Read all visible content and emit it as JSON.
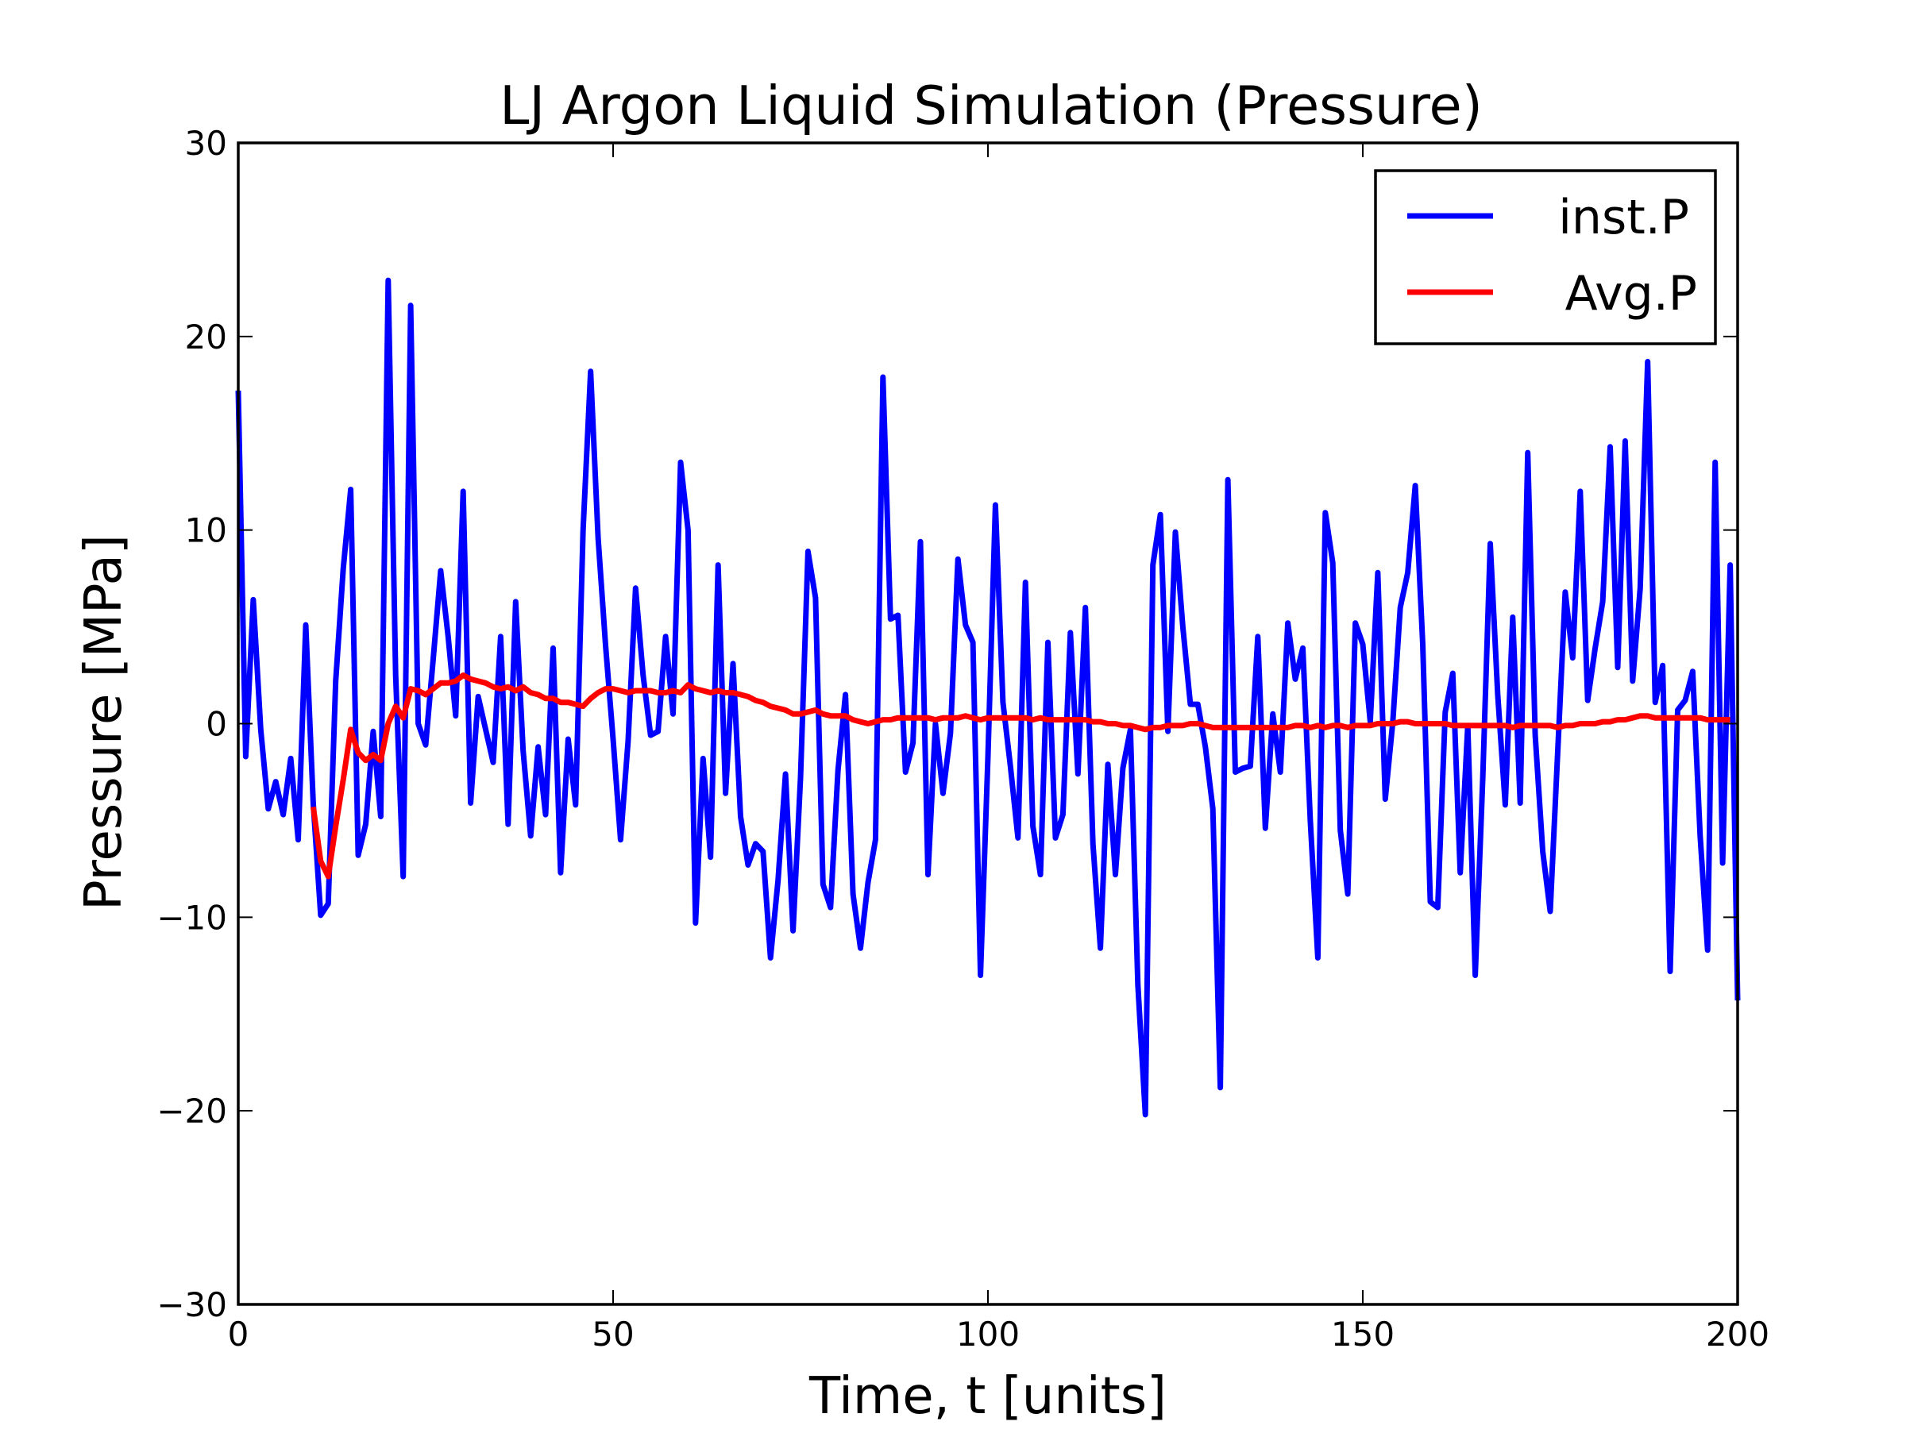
{
  "chart_data": {
    "type": "line",
    "title": "LJ Argon Liquid Simulation (Pressure)",
    "xlabel": "Time, t [units]",
    "ylabel": "Pressure [MPa]",
    "xlim": [
      0,
      200
    ],
    "ylim": [
      -30,
      30
    ],
    "x_ticks": [
      0,
      50,
      100,
      150,
      200
    ],
    "x_tick_labels": [
      "0",
      "50",
      "100",
      "150",
      "200"
    ],
    "y_ticks": [
      30,
      20,
      10,
      0,
      -10,
      -20,
      -30
    ],
    "y_tick_labels": [
      "30",
      "20",
      "10",
      "0",
      "−10",
      "−20",
      "−30"
    ],
    "grid": false,
    "legend_position": "top-right",
    "series": [
      {
        "name": "inst.P",
        "color": "#0000ff",
        "x_start": 0,
        "x_step": 1,
        "values": [
          17.2,
          -1.7,
          6.4,
          -0.3,
          -4.4,
          -3.0,
          -4.7,
          -1.8,
          -6.0,
          5.1,
          -4.1,
          -9.9,
          -9.3,
          2.2,
          8.0,
          12.1,
          -6.8,
          -5.2,
          -0.4,
          -4.8,
          22.9,
          2.5,
          -7.9,
          21.6,
          0.0,
          -1.1,
          3.3,
          7.9,
          4.5,
          0.4,
          12.0,
          -4.1,
          1.4,
          -0.3,
          -2.0,
          4.5,
          -5.2,
          6.3,
          -1.4,
          -5.8,
          -1.2,
          -4.7,
          3.9,
          -7.7,
          -0.8,
          -4.2,
          10.0,
          18.2,
          9.6,
          4.0,
          -0.8,
          -6.0,
          -0.9,
          7.0,
          2.5,
          -0.6,
          -0.4,
          4.5,
          0.5,
          13.5,
          10.0,
          -10.3,
          -1.8,
          -6.9,
          8.2,
          -3.6,
          3.1,
          -4.8,
          -7.3,
          -6.2,
          -6.6,
          -12.1,
          -8.1,
          -2.6,
          -10.7,
          -2.8,
          8.9,
          6.5,
          -8.3,
          -9.5,
          -2.4,
          1.5,
          -8.8,
          -11.6,
          -8.2,
          -6.0,
          17.9,
          5.4,
          5.6,
          -2.5,
          -1.0,
          9.4,
          -7.8,
          0.0,
          -3.6,
          -0.5,
          8.5,
          5.1,
          4.2,
          -13.0,
          -1.7,
          11.3,
          1.1,
          -2.2,
          -5.9,
          7.3,
          -5.3,
          -7.8,
          4.2,
          -5.9,
          -4.7,
          4.7,
          -2.6,
          6.0,
          -6.2,
          -11.6,
          -2.1,
          -7.8,
          -2.3,
          -0.3,
          -13.5,
          -20.2,
          8.2,
          10.8,
          -0.4,
          9.9,
          5.0,
          1.0,
          1.0,
          -1.2,
          -4.4,
          -18.8,
          12.6,
          -2.5,
          -2.3,
          -2.2,
          4.5,
          -5.4,
          0.5,
          -2.5,
          5.2,
          2.3,
          3.9,
          -5.0,
          -12.1,
          10.9,
          8.3,
          -5.5,
          -8.8,
          5.2,
          4.1,
          0.1,
          7.8,
          -3.9,
          0.1,
          6.0,
          7.8,
          12.3,
          4.1,
          -9.2,
          -9.5,
          0.6,
          2.6,
          -7.7,
          -0.1,
          -13.0,
          -2.9,
          9.3,
          1.5,
          -4.2,
          5.5,
          -4.1,
          14.0,
          -0.6,
          -6.6,
          -9.7,
          -1.5,
          6.8,
          3.4,
          12.0,
          1.2,
          3.9,
          6.3,
          14.3,
          2.9,
          14.6,
          2.2,
          7.0,
          18.7,
          1.1,
          3.0,
          -12.8,
          0.7,
          1.2,
          2.7,
          -5.8,
          -11.7,
          13.5,
          -7.2,
          8.2,
          -14.3
        ]
      },
      {
        "name": "Avg.P",
        "color": "#ff0000",
        "x_start": 10,
        "x_step": 1,
        "values": [
          -4.3,
          -7.1,
          -7.9,
          -5.3,
          -2.9,
          -0.3,
          -1.5,
          -1.9,
          -1.6,
          -1.9,
          0.0,
          0.9,
          0.3,
          1.8,
          1.7,
          1.5,
          1.8,
          2.1,
          2.1,
          2.2,
          2.5,
          2.3,
          2.2,
          2.1,
          1.9,
          1.8,
          1.9,
          1.7,
          1.9,
          1.6,
          1.5,
          1.3,
          1.3,
          1.1,
          1.1,
          1.0,
          0.9,
          1.3,
          1.6,
          1.8,
          1.8,
          1.7,
          1.6,
          1.7,
          1.7,
          1.7,
          1.6,
          1.6,
          1.7,
          1.6,
          2.0,
          1.8,
          1.7,
          1.6,
          1.7,
          1.6,
          1.6,
          1.5,
          1.4,
          1.2,
          1.1,
          0.9,
          0.8,
          0.7,
          0.5,
          0.5,
          0.6,
          0.7,
          0.5,
          0.4,
          0.4,
          0.4,
          0.2,
          0.1,
          0.0,
          0.1,
          0.2,
          0.2,
          0.3,
          0.3,
          0.3,
          0.3,
          0.3,
          0.2,
          0.3,
          0.3,
          0.3,
          0.4,
          0.3,
          0.2,
          0.3,
          0.3,
          0.3,
          0.3,
          0.3,
          0.3,
          0.2,
          0.3,
          0.2,
          0.2,
          0.2,
          0.2,
          0.2,
          0.2,
          0.1,
          0.1,
          0.0,
          0.0,
          -0.1,
          -0.1,
          -0.2,
          -0.3,
          -0.2,
          -0.2,
          -0.1,
          -0.1,
          -0.1,
          0.0,
          0.0,
          -0.1,
          -0.2,
          -0.2,
          -0.2,
          -0.2,
          -0.2,
          -0.2,
          -0.2,
          -0.2,
          -0.2,
          -0.2,
          -0.2,
          -0.1,
          -0.1,
          -0.2,
          -0.1,
          -0.2,
          -0.1,
          -0.1,
          -0.2,
          -0.1,
          -0.1,
          -0.1,
          0.0,
          0.0,
          0.0,
          0.1,
          0.1,
          0.0,
          0.0,
          0.0,
          0.0,
          0.0,
          -0.1,
          -0.1,
          -0.1,
          -0.1,
          -0.1,
          -0.1,
          -0.1,
          -0.1,
          -0.2,
          -0.1,
          -0.1,
          -0.1,
          -0.1,
          -0.1,
          -0.2,
          -0.1,
          -0.1,
          0.0,
          0.0,
          0.0,
          0.1,
          0.1,
          0.2,
          0.2,
          0.3,
          0.4,
          0.4,
          0.3,
          0.3,
          0.3,
          0.3,
          0.3,
          0.3,
          0.3,
          0.2,
          0.2,
          0.2,
          0.2
        ]
      }
    ]
  }
}
